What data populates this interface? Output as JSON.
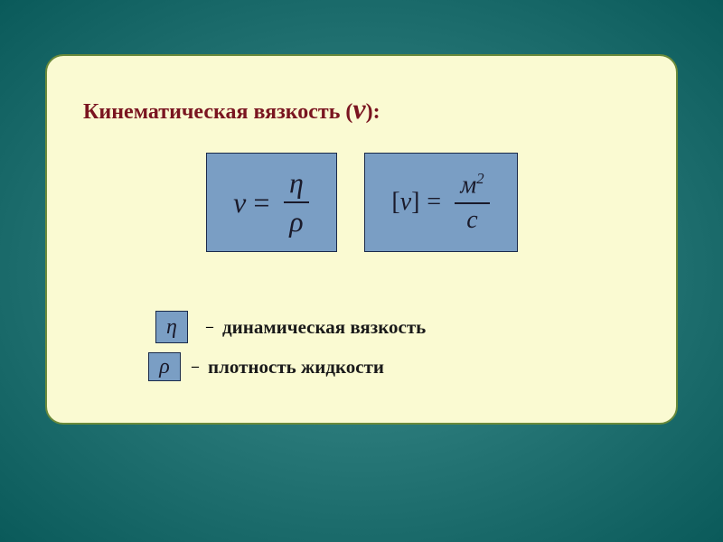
{
  "card": {
    "background_color": "#fafad2",
    "border_color": "#6a8a3a",
    "border_radius": 20
  },
  "background": {
    "gradient_inner": "#4a9a9a",
    "gradient_outer": "#0a5a5a"
  },
  "title": {
    "text": "Кинематическая вязкость  (",
    "symbol": "ν",
    "close": "):",
    "color": "#7a1520",
    "fontsize": 24
  },
  "formulas": {
    "box_bg": "#7a9ec4",
    "box_border": "#1a2a4a",
    "eq1": {
      "lhs": "ν",
      "op": "=",
      "numerator": "η",
      "denominator": "ρ"
    },
    "eq2": {
      "lhs_open": "[",
      "lhs_var": "ν",
      "lhs_close": "]",
      "op": "=",
      "numerator_base": "м",
      "numerator_exp": "2",
      "denominator": "с"
    }
  },
  "legend": {
    "item1": {
      "symbol": "η",
      "dash": "–",
      "text": "динамическая вязкость"
    },
    "item2": {
      "symbol": "ρ",
      "dash": "–",
      "text": "плотность жидкости"
    },
    "text_color": "#1a1a1a",
    "fontsize": 21
  }
}
